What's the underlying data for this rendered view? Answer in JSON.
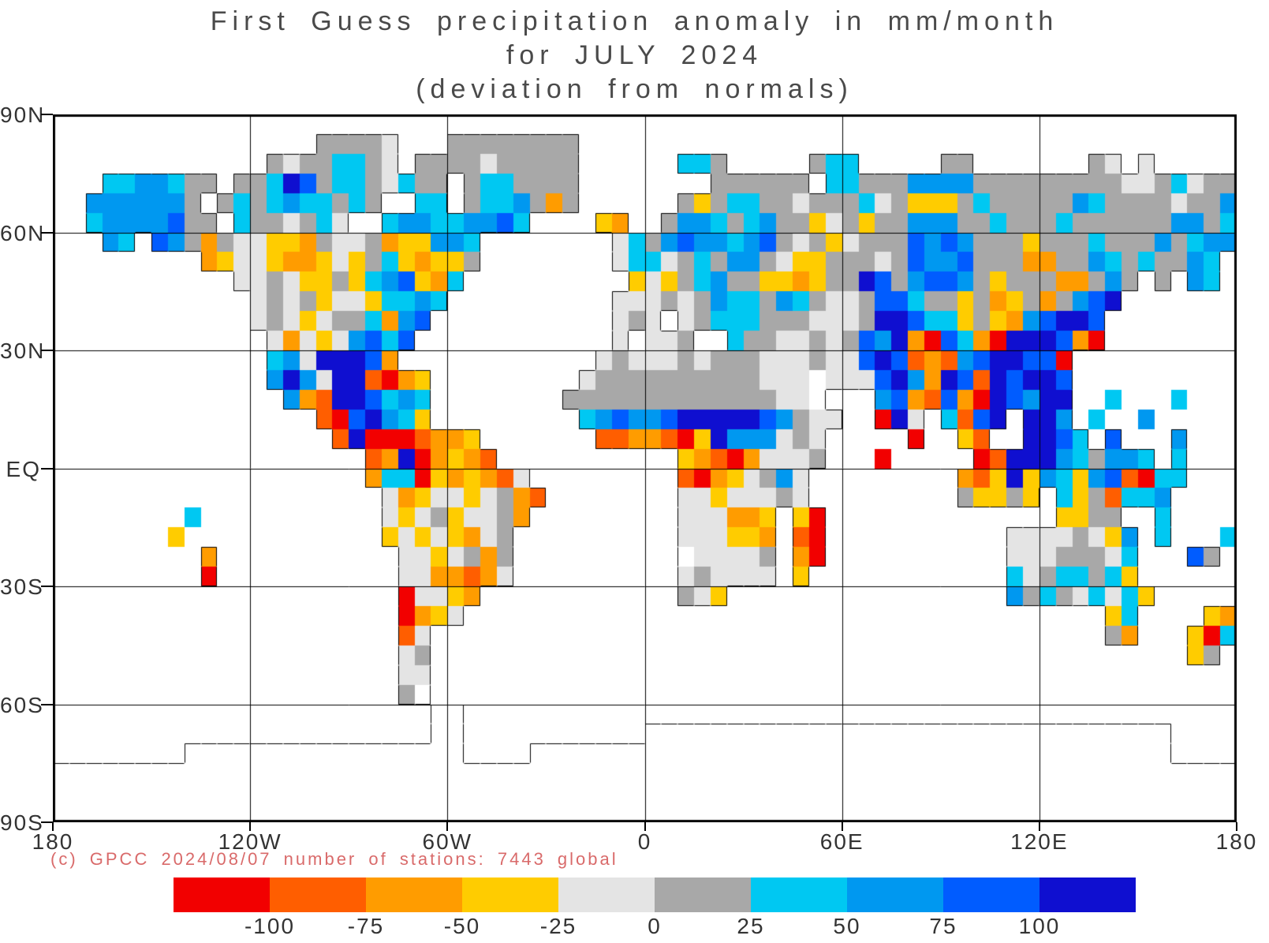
{
  "title": {
    "line1": "First Guess precipitation anomaly in mm/month",
    "line2": "for JULY 2024",
    "line3": "(deviation from normals)"
  },
  "axes": {
    "y_labels": [
      "90N",
      "60N",
      "30N",
      "EQ",
      "30S",
      "60S",
      "90S"
    ],
    "x_labels": [
      "180",
      "120W",
      "60W",
      "0",
      "60E",
      "120E",
      "180"
    ]
  },
  "credit": {
    "text": "(c) GPCC 2024/08/07 number of stations: 7443 global",
    "color": "#d96a6a"
  },
  "colorbar": {
    "tick_labels": [
      "-100",
      "-75",
      "-50",
      "-25",
      "0",
      "25",
      "50",
      "75",
      "100"
    ],
    "colors": [
      "#f20000",
      "#ff5e00",
      "#ff9c00",
      "#ffcc00",
      "#e4e4e4",
      "#a8a8a8",
      "#00c8f2",
      "#0098f0",
      "#005cff",
      "#0f0fd0"
    ]
  },
  "chart_data": {
    "type": "heatmap",
    "title": "First Guess precipitation anomaly in mm/month for JULY 2024 (deviation from normals)",
    "units": "mm/month",
    "projection": "equirectangular",
    "lat_range": [
      90,
      -90
    ],
    "lon_range": [
      -180,
      180
    ],
    "cell_size_deg": 5,
    "legend_boundaries": [
      -100,
      -75,
      -50,
      -25,
      0,
      25,
      50,
      75,
      100
    ],
    "palette": {
      "r": "#f20000",
      "o": "#ff5e00",
      "O": "#ff9c00",
      "y": "#ffcc00",
      "l": "#e4e4e4",
      "g": "#a8a8a8",
      "c": "#00c8f2",
      "b": "#0098f0",
      "B": "#005cff",
      "d": "#0f0fd0",
      "w": "#ffffff",
      ".": "none"
    },
    "palette_meaning": {
      "r": "below -100",
      "o": "-100 to -75",
      "O": "-75 to -50",
      "y": "-50 to -25",
      "l": "-25 to 0",
      "g": "0 to 25",
      "c": "25 to 50",
      "b": "50 to 75",
      "B": "75 to 100",
      "d": "above 100",
      "w": "land outline only",
      ".": "ocean / no data"
    },
    "grid_blocks": [
      [
        "......",
        "......",
        "......",
        "......",
        "......",
        "......",
        "......",
        "......",
        "......",
        "......",
        "......",
        "......"
      ],
      [
        "......",
        "......",
        "....gg",
        "ggl...",
        "gggggg",
        "gg....",
        "......",
        "......",
        "......",
        "......",
        "......",
        "......"
      ],
      [
        "......",
        "......",
        ".glggc",
        "cgl.gg",
        "gglggg",
        "gg....",
        "..ccg.",
        "....gc",
        "c.....",
        "gg....",
        "...gl.",
        "l....."
      ],
      [
        "...ccb",
        "bcgg.g",
        "gcdBgc",
        "cglcgg",
        ".gccgg",
        "gg....",
        "....gg",
        "gggg.c",
        "cgggbb",
        "bbgggg",
        "gggggl",
        "lgclgg"
      ],
      [
        "..bbbb",
        "bbg.gc",
        "gcbccg",
        "cg..cc",
        ".gccbg",
        "Og....",
        "..gygc",
        "cgglgg",
        "gclgyy",
        "ygcggg",
        "ggbcgg",
        "gglggb"
      ],
      [
        "..cbbb",
        "bBgg.c",
        "gglgcl",
        "..cbbc",
        "cbbBc.",
        "...yO.",
        ".gbbcg",
        "cbggyl",
        "gyggbb",
        "bggcgg",
        "gcgggg",
        "ggbbgc"
      ],
      [
        "...bc.",
        "BbgOgl",
        "lyyOgl",
        "lgOyyb",
        "bc....",
        "....lc",
        "gbBbbc",
        "bBglgy",
        "lgggBb",
        "Bbgggy",
        "gggcgg",
        "gbgcbb"
      ],
      [
        "......",
        "...Oyl",
        "lyOOyl",
        "ygcyOy",
        "yg....",
        "....lc",
        "clgcgb",
        "bglyyg",
        "gglgBb",
        "bBgggO",
        "Oggbcg",
        "cggbc."
      ],
      [
        "......",
        ".....l",
        "lglyyg",
        "ycbByO",
        "c.....",
        ".....y",
        "lygcbg",
        "gyyOyg",
        "gdBgbB",
        "Bbgygg",
        "gOOgbg",
        ".g.bc."
      ],
      [
        "......",
        "......",
        "lglgyl",
        "lyccbc",
        "......",
        "....ll",
        "lglgbc",
        "cgbcgl",
        "lgBBcg",
        "gygOyg",
        "OgbBd.",
        "......"
      ],
      [
        "......",
        "......",
        "lglylg",
        "gcObB.",
        "......",
        "....lg",
        "l.lgcc",
        "cgggll",
        "lgddBc",
        "cygyOb",
        "BddB..",
        "......"
      ],
      [
        "......",
        "......",
        ".lOlyl",
        "bBcB..",
        "......",
        "....l.",
        "llg..c",
        "ggllgl",
        "gBbdOr",
        "BcOrdd",
        "dBOr..",
        "......"
      ],
      [
        "......",
        "......",
        ".cbldd",
        "dBO...",
        "......",
        "...lgl",
        "llglgg",
        "glllgl",
        "lBdBoO",
        "obBddB",
        "Br....",
        "......"
      ],
      [
        "......",
        "......",
        ".bdbld",
        "dorOy.",
        "......",
        "..lggg",
        "gggggg",
        "glllwl",
        "llBdbO",
        "dBodBd",
        "dB....",
        "......"
      ],
      [
        "......",
        "......",
        "..bOod",
        "dBcbc.",
        "......",
        ".ggggg",
        "gggggg",
        "ggllw.",
        "..bBOo",
        "BOrdBb",
        "dd..c.",
        "..c..."
      ],
      [
        "......",
        "......",
        "....or",
        "Bdbcy.",
        "......",
        "..cbBb",
        "bBdddd",
        "dBbgll",
        "..rdl.",
        "coBd.d",
        "db.c..",
        "b....."
      ],
      [
        "......",
        "......",
        ".....o",
        "drrroO",
        "Oy....",
        "...ooO",
        "Oorydb",
        "bblgl.",
        "....r.",
        ".yo..d",
        "dBc.B.",
        "..b..."
      ],
      [
        "......",
        "......",
        "......",
        ".oOdrO",
        "yOo...",
        "......",
        "..yOor",
        "Olllg.",
        "..r...",
        "..rodd",
        "dbcgbb",
        "c.c..."
      ],
      [
        "......",
        "......",
        "......",
        ".Occry",
        "OyOol.",
        "......",
        "..orOy",
        "lgbl..",
        "......",
        ".Ooydy",
        "bcybBo",
        "rcc..."
      ],
      [
        "......",
        "......",
        "......",
        "..lOyl",
        "lylgOo",
        "......",
        "..llyl",
        "llgl..",
        "......",
        ".gyygy",
        ".cygoc",
        "cb...."
      ],
      [
        "......",
        "..c...",
        "......",
        "..lylg",
        "yllgO.",
        "......",
        "..lllO",
        "Oy.yr.",
        "......",
        "......",
        ".yygg.",
        ".c...."
      ],
      [
        "......",
        ".y....",
        "......",
        "..ylyl",
        "yOlg..",
        "......",
        "..llly",
        "yO.or.",
        "......",
        "....ll",
        "llglyb",
        ".c...c"
      ],
      [
        "......",
        "...O..",
        "......",
        "...lly",
        "lgOg..",
        "......",
        "..wlll",
        "lg.Or.",
        "......",
        "....ll",
        "lggglc",
        "...Bg."
      ],
      [
        "......",
        "...r..",
        "......",
        "...llO",
        "OoOl..",
        "......",
        "..lgll",
        "ll.y..",
        "......",
        "....cl",
        "gccgcy",
        "......"
      ],
      [
        "......",
        "......",
        "......",
        "...rll",
        "yO....",
        "......",
        "..gly.",
        "......",
        "......",
        "....bg",
        "cglclc",
        "y....."
      ],
      [
        "......",
        "......",
        "......",
        "...rOy",
        "l.....",
        "......",
        "......",
        "......",
        "......",
        "......",
        "....yc",
        "....yO"
      ],
      [
        "......",
        "......",
        "......",
        "...ol.",
        "......",
        "......",
        "......",
        "......",
        "......",
        "......",
        "....gO",
        "...yrc"
      ],
      [
        "......",
        "......",
        "......",
        "...lg.",
        "......",
        "......",
        "......",
        "......",
        "......",
        "......",
        "......",
        "...yg."
      ],
      [
        "......",
        "......",
        "......",
        "...ll.",
        "......",
        "......",
        "......",
        "......",
        "......",
        "......",
        "......",
        "......"
      ],
      [
        "......",
        "......",
        "......",
        "...gw.",
        "......",
        "......",
        "......",
        "......",
        "......",
        "......",
        "......",
        "......"
      ],
      [
        "......",
        "......",
        "......",
        ".....w",
        "w.....",
        "......",
        "......",
        "......",
        "......",
        "......",
        "......",
        "......"
      ],
      [
        "......",
        "......",
        "......",
        ".....w",
        "w.....",
        "......",
        "wwwwww",
        "wwwwww",
        "wwwwww",
        "wwwwww",
        "wwwwww",
        "ww...."
      ],
      [
        "......",
        "..wwww",
        "wwwwww",
        "wwwwww",
        "w....w",
        "wwwwww",
        "wwwwww",
        "wwwwww",
        "wwwwww",
        "wwwwww",
        "wwwwww",
        "ww...."
      ],
      [
        "wwwwww",
        "wwwwww",
        "wwwwww",
        "wwwwww",
        "wwwwww",
        "wwwwww",
        "wwwwww",
        "wwwwww",
        "wwwwww",
        "wwwwww",
        "wwwwww",
        "wwwwww"
      ],
      [
        "wwwwww",
        "wwwwww",
        "wwwwww",
        "wwwwww",
        "wwwwww",
        "wwwwww",
        "wwwwww",
        "wwwwww",
        "wwwwww",
        "wwwwww",
        "wwwwww",
        "wwwwww"
      ],
      [
        "wwwwww",
        "wwwwww",
        "wwwwww",
        "wwwwww",
        "wwwwww",
        "wwwwww",
        "wwwwww",
        "wwwwww",
        "wwwwww",
        "wwwwww",
        "wwwwww",
        "wwwwww"
      ]
    ]
  }
}
